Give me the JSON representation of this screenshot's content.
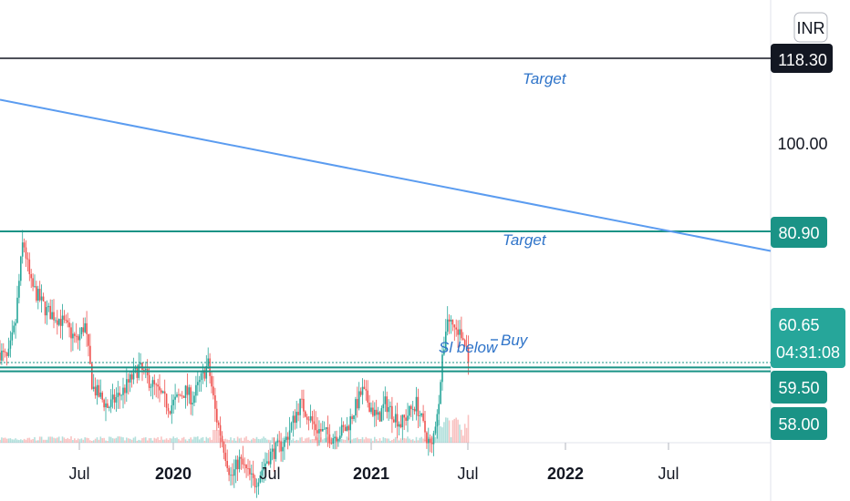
{
  "currency_label": "INR",
  "colors": {
    "up": "#26a69a",
    "down": "#ef5350",
    "teal_line": "#1a9386",
    "trend_line": "#5b9cf0",
    "annotation": "#2f74c9",
    "black_line": "#131722",
    "axis_text": "#131722",
    "grid_separator": "#e0e3eb"
  },
  "chart_data": {
    "type": "candlestick",
    "x_axis": {
      "ticks": [
        {
          "label": "Jul",
          "bold": false
        },
        {
          "label": "2020",
          "bold": true
        },
        {
          "label": "Jul",
          "bold": false
        },
        {
          "label": "2021",
          "bold": true
        },
        {
          "label": "Jul",
          "bold": false
        },
        {
          "label": "2022",
          "bold": true
        },
        {
          "label": "Jul",
          "bold": false
        }
      ]
    },
    "y_axis": {
      "scale": "log",
      "ticks": [
        "100.00",
        "58.00"
      ]
    },
    "horizontal_levels": [
      {
        "name": "target-high",
        "value": 118.3,
        "label": "118.30",
        "style": "black"
      },
      {
        "name": "target-mid",
        "value": 80.9,
        "label": "80.90",
        "style": "teal"
      },
      {
        "name": "buy",
        "value": 60.0,
        "label": "",
        "style": "teal"
      },
      {
        "name": "stop-loss",
        "value": 59.5,
        "label": "59.50",
        "style": "teal"
      }
    ],
    "current_price": {
      "value": 60.65,
      "label": "60.65",
      "countdown": "04:31:08"
    },
    "trend_line": {
      "from_value": 108.0,
      "to_value": 77.5
    },
    "annotations": [
      {
        "text": "Target"
      },
      {
        "text": "Target"
      },
      {
        "text": "Sl below"
      },
      {
        "text": "Buy"
      }
    ],
    "price_path": [
      [
        0,
        62.0
      ],
      [
        0.01,
        61.0
      ],
      [
        0.02,
        66.0
      ],
      [
        0.03,
        79.5
      ],
      [
        0.04,
        72.0
      ],
      [
        0.06,
        68.0
      ],
      [
        0.08,
        66.5
      ],
      [
        0.1,
        63.5
      ],
      [
        0.11,
        66.0
      ],
      [
        0.12,
        57.5
      ],
      [
        0.14,
        55.0
      ],
      [
        0.16,
        57.0
      ],
      [
        0.18,
        60.0
      ],
      [
        0.2,
        57.5
      ],
      [
        0.22,
        55.0
      ],
      [
        0.24,
        57.0
      ],
      [
        0.25,
        56.0
      ],
      [
        0.27,
        60.5
      ],
      [
        0.28,
        54.0
      ],
      [
        0.29,
        50.5
      ],
      [
        0.3,
        47.0
      ],
      [
        0.31,
        49.0
      ],
      [
        0.33,
        46.5
      ],
      [
        0.35,
        49.5
      ],
      [
        0.37,
        51.0
      ],
      [
        0.39,
        55.5
      ],
      [
        0.41,
        52.5
      ],
      [
        0.43,
        51.5
      ],
      [
        0.45,
        52.5
      ],
      [
        0.47,
        57.0
      ],
      [
        0.49,
        53.5
      ],
      [
        0.5,
        55.5
      ],
      [
        0.52,
        53.0
      ],
      [
        0.54,
        55.5
      ],
      [
        0.55,
        52.5
      ],
      [
        0.56,
        50.0
      ],
      [
        0.57,
        56.5
      ],
      [
        0.58,
        67.0
      ],
      [
        0.6,
        64.0
      ],
      [
        0.61,
        60.8
      ]
    ]
  }
}
